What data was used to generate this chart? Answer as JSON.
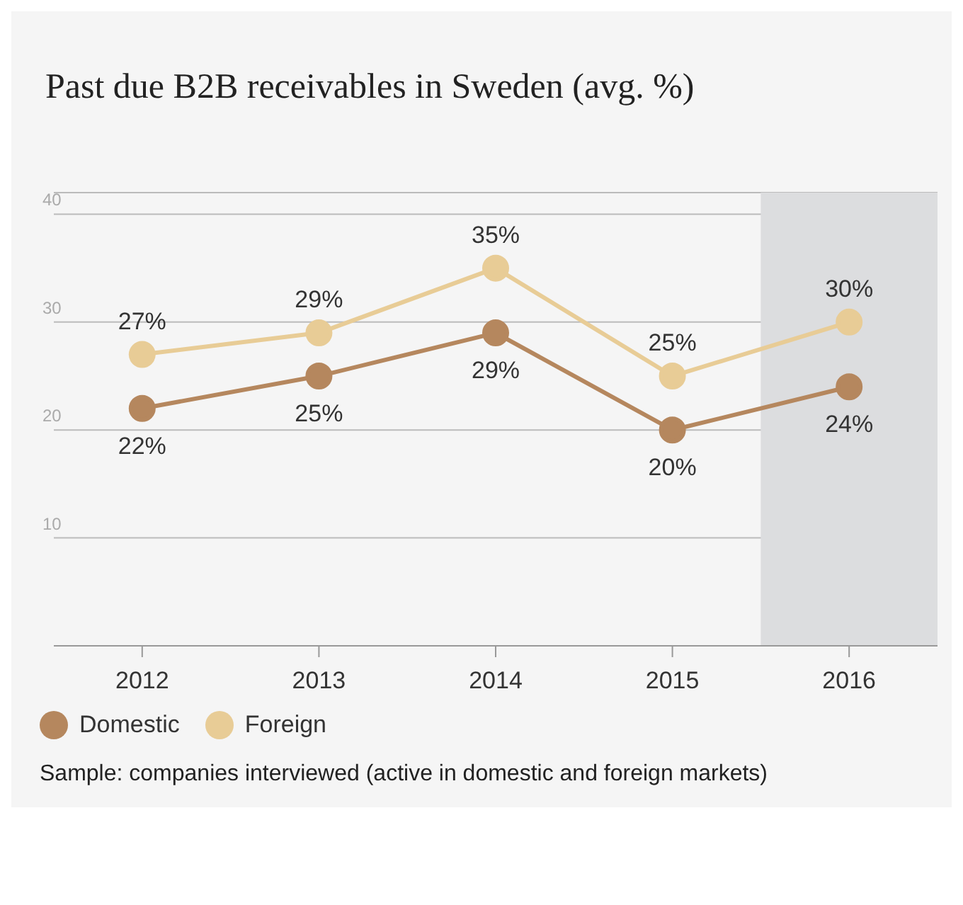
{
  "chart_data": {
    "type": "line",
    "title": "Past due B2B receivables in Sweden (avg. %)",
    "categories": [
      "2012",
      "2013",
      "2014",
      "2015",
      "2016"
    ],
    "series": [
      {
        "name": "Domestic",
        "color": "#b5875e",
        "values": [
          22,
          25,
          29,
          20,
          24
        ],
        "value_labels": [
          "22%",
          "25%",
          "29%",
          "20%",
          "24%"
        ]
      },
      {
        "name": "Foreign",
        "color": "#e8cc96",
        "values": [
          27,
          29,
          35,
          25,
          30
        ],
        "value_labels": [
          "27%",
          "29%",
          "35%",
          "25%",
          "30%"
        ]
      }
    ],
    "ylim": [
      0,
      42
    ],
    "yticks": [
      10,
      20,
      30,
      40
    ],
    "grid": "y",
    "legend": "bottom left",
    "marker": "circle",
    "line_style": "solid",
    "bands": [
      {
        "axis": "x",
        "from": "2016",
        "to": "2016",
        "color": "#dcdddf"
      }
    ],
    "annotations": [
      "Sample: companies interviewed (active in domestic and foreign markets)"
    ]
  }
}
